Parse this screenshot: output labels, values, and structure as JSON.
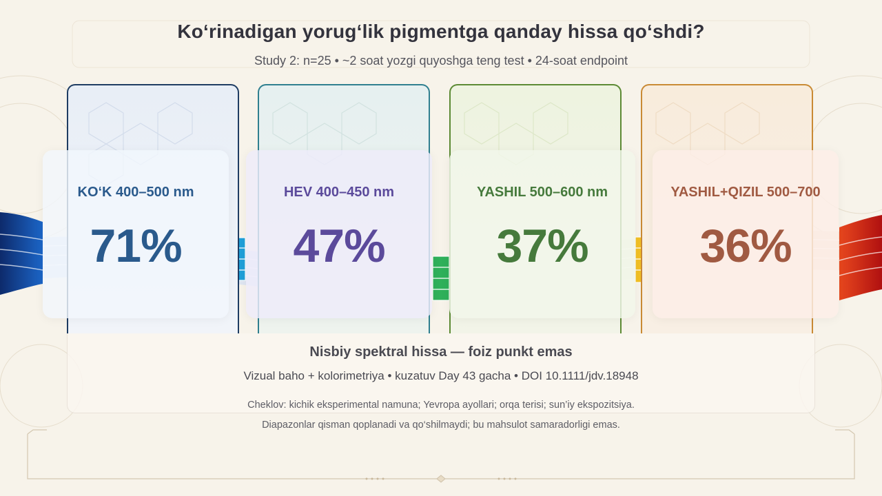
{
  "title": "Ko‘rinadigan yorug‘lik pigmentga qanday hissa qo‘shdi?",
  "subtitle": "Study 2: n=25 • ~2 soat yozgi quyoshga teng test • 24-soat endpoint",
  "bands": [
    {
      "label": "KO‘K 400–500 nm",
      "value": "71%",
      "color": "#2a5a8c",
      "border": "#1e3c62"
    },
    {
      "label": "HEV 400–450 nm",
      "value": "47%",
      "color": "#5b4a9b",
      "border": "#2f7f8f"
    },
    {
      "label": "YASHIL 500–600 nm",
      "value": "37%",
      "color": "#467a3c",
      "border": "#5c8a34"
    },
    {
      "label": "YASHIL+QIZIL 500–700",
      "value": "36%",
      "color": "#a05a42",
      "border": "#c98a34"
    }
  ],
  "footer": {
    "heading": "Nisbiy spektral hissa — foiz punkt emas",
    "method": "Vizual baho + kolorimetriya • kuzatuv Day 43 gacha • DOI 10.1111/jdv.18948"
  },
  "notes": [
    "Cheklov: kichik eksperimental namuna; Yevropa ayollari; orqa terisi; sun’iy ekspozitsiya.",
    "Diapazonlar qisman qoplanadi va qo‘shilmaydi; bu mahsulot samaradorligi emas."
  ]
}
